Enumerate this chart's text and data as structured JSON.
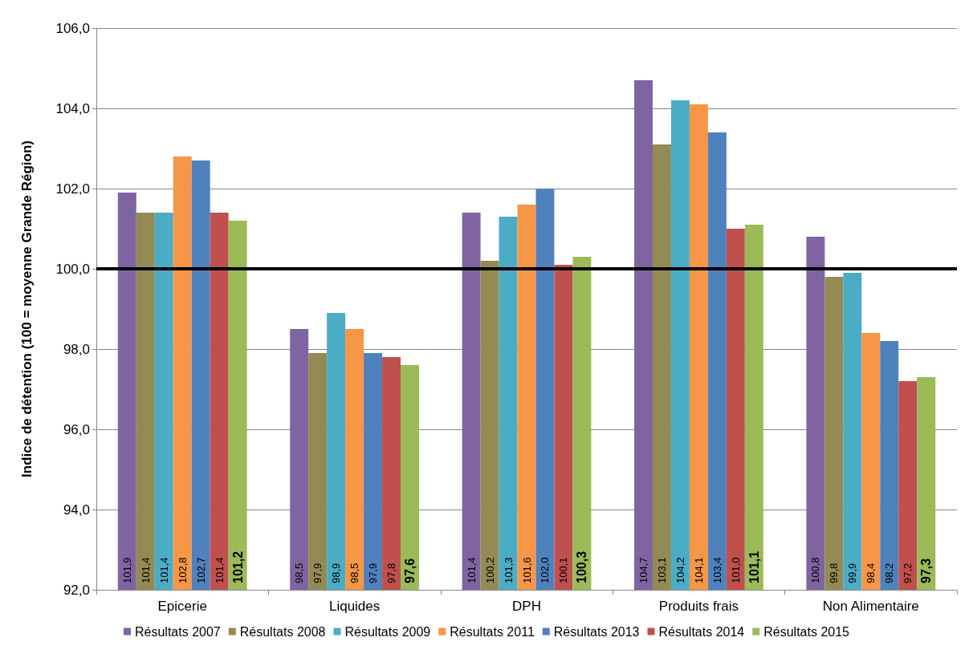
{
  "chart_data": {
    "type": "bar",
    "categories": [
      "Epicerie",
      "Liquides",
      "DPH",
      "Produits frais",
      "Non Alimentaire"
    ],
    "ylabel": "Indice de détention (100 = moyenne Grande Région)",
    "ylim": [
      92,
      106
    ],
    "yticks": [
      {
        "value": 92,
        "label": "92,0"
      },
      {
        "value": 94,
        "label": "94,0"
      },
      {
        "value": 96,
        "label": "96,0"
      },
      {
        "value": 98,
        "label": "98,0"
      },
      {
        "value": 100,
        "label": "100,0"
      },
      {
        "value": 102,
        "label": "102,0"
      },
      {
        "value": 104,
        "label": "104,0"
      },
      {
        "value": 106,
        "label": "106,0"
      }
    ],
    "series": [
      {
        "name": "Résultats 2007",
        "color": "#8064a2",
        "values": [
          101.9,
          98.5,
          101.4,
          104.7,
          100.8
        ],
        "value_labels": [
          "101,9",
          "98,5",
          "101,4",
          "104,7",
          "100,8"
        ]
      },
      {
        "name": "Résultats 2008",
        "color": "#948a54",
        "values": [
          101.4,
          97.9,
          100.2,
          103.1,
          99.8
        ],
        "value_labels": [
          "101,4",
          "97,9",
          "100,2",
          "103,1",
          "99,8"
        ]
      },
      {
        "name": "Résultats 2009",
        "color": "#4bacc6",
        "values": [
          101.4,
          98.9,
          101.3,
          104.2,
          99.9
        ],
        "value_labels": [
          "101,4",
          "98,9",
          "101,3",
          "104,2",
          "99,9"
        ]
      },
      {
        "name": "Résultats 2011",
        "color": "#f79646",
        "values": [
          102.8,
          98.5,
          101.6,
          104.1,
          98.4
        ],
        "value_labels": [
          "102,8",
          "98,5",
          "101,6",
          "104,1",
          "98,4"
        ]
      },
      {
        "name": "Résultats 2013",
        "color": "#4f81bd",
        "values": [
          102.7,
          97.9,
          102.0,
          103.4,
          98.2
        ],
        "value_labels": [
          "102,7",
          "97,9",
          "102,0",
          "103,4",
          "98,2"
        ]
      },
      {
        "name": "Résultats 2014",
        "color": "#c0504d",
        "values": [
          101.4,
          97.8,
          100.1,
          101.0,
          97.2
        ],
        "value_labels": [
          "101,4",
          "97,8",
          "100,1",
          "101,0",
          "97,2"
        ]
      },
      {
        "name": "Résultats 2015",
        "color": "#9bbb59",
        "values": [
          101.2,
          97.6,
          100.3,
          101.1,
          97.3
        ],
        "value_labels": [
          "101,2",
          "97,6",
          "100,3",
          "101,1",
          "97,3"
        ]
      }
    ],
    "ref_lines": [
      {
        "axis": "y",
        "value": 100,
        "color": "#000000"
      }
    ],
    "grid": "y",
    "legend": "bottom"
  }
}
